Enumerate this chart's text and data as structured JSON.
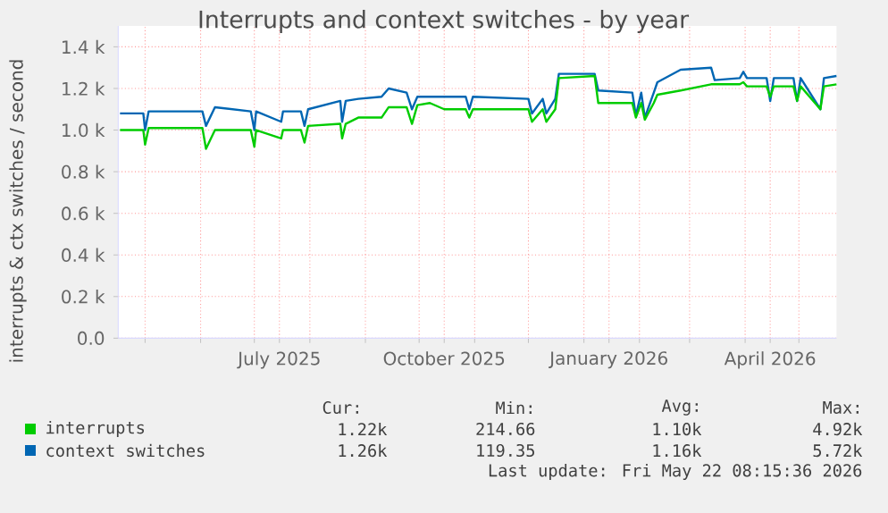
{
  "chart_data": {
    "type": "line",
    "title": "Interrupts and context switches - by year",
    "ylabel": "interrupts & ctx switches / second",
    "xlim": [
      "2025-04-16",
      "2026-05-22"
    ],
    "ylim": [
      0,
      1500
    ],
    "xticks": [
      {
        "value": "2025-05-01",
        "label": null
      },
      {
        "value": "2025-06-01",
        "label": null
      },
      {
        "value": "2025-07-01",
        "label": null
      },
      {
        "value": "2025-07-15",
        "label": "July 2025"
      },
      {
        "value": "2025-08-01",
        "label": null
      },
      {
        "value": "2025-09-01",
        "label": null
      },
      {
        "value": "2025-10-01",
        "label": null
      },
      {
        "value": "2025-10-15",
        "label": "October 2025"
      },
      {
        "value": "2025-11-01",
        "label": null
      },
      {
        "value": "2025-12-01",
        "label": null
      },
      {
        "value": "2026-01-01",
        "label": null
      },
      {
        "value": "2026-01-15",
        "label": "January 2026"
      },
      {
        "value": "2026-02-01",
        "label": null
      },
      {
        "value": "2026-03-01",
        "label": null
      },
      {
        "value": "2026-04-01",
        "label": null
      },
      {
        "value": "2026-04-15",
        "label": "April 2026"
      },
      {
        "value": "2026-05-01",
        "label": null
      }
    ],
    "yticks": [
      {
        "value": 0,
        "label": "0.0"
      },
      {
        "value": 200,
        "label": "0.2 k"
      },
      {
        "value": 400,
        "label": "0.4 k"
      },
      {
        "value": 600,
        "label": "0.6 k"
      },
      {
        "value": 800,
        "label": "0.8 k"
      },
      {
        "value": 1000,
        "label": "1.0 k"
      },
      {
        "value": 1200,
        "label": "1.2 k"
      },
      {
        "value": 1400,
        "label": "1.4 k"
      }
    ],
    "grid": true,
    "legend": "bottom",
    "annotations": [
      "Cur:",
      "Min:",
      "Avg:",
      "Max:",
      "1.22k",
      "214.66",
      "1.10k",
      "4.92k",
      "1.26k",
      "119.35",
      "1.16k",
      "5.72k",
      "Last update: Fri May 22 08:15:36 2026"
    ],
    "series": [
      {
        "name": "context switches",
        "color": "#0066b3",
        "x": [
          "2025-04-17",
          "2025-04-30",
          "2025-05-01",
          "2025-05-03",
          "2025-06-02",
          "2025-06-04",
          "2025-06-09",
          "2025-06-29",
          "2025-07-01",
          "2025-07-02",
          "2025-07-16",
          "2025-07-17",
          "2025-07-27",
          "2025-07-29",
          "2025-07-31",
          "2025-08-18",
          "2025-08-19",
          "2025-08-21",
          "2025-08-28",
          "2025-09-10",
          "2025-09-14",
          "2025-09-24",
          "2025-09-27",
          "2025-09-30",
          "2025-10-07",
          "2025-10-27",
          "2025-10-29",
          "2025-10-31",
          "2025-12-01",
          "2025-12-03",
          "2025-12-09",
          "2025-12-11",
          "2025-12-16",
          "2025-12-18",
          "2026-01-07",
          "2026-01-09",
          "2026-01-28",
          "2026-01-30",
          "2026-02-02",
          "2026-02-04",
          "2026-02-09",
          "2026-02-11",
          "2026-02-24",
          "2026-03-13",
          "2026-03-15",
          "2026-03-29",
          "2026-03-31",
          "2026-04-02",
          "2026-04-13",
          "2026-04-15",
          "2026-04-17",
          "2026-04-28",
          "2026-04-30",
          "2026-05-02",
          "2026-05-13",
          "2026-05-15",
          "2026-05-22"
        ],
        "values": [
          1080,
          1080,
          1000,
          1090,
          1090,
          1020,
          1110,
          1090,
          1000,
          1090,
          1040,
          1090,
          1090,
          1020,
          1100,
          1140,
          1040,
          1140,
          1150,
          1160,
          1200,
          1180,
          1100,
          1160,
          1160,
          1160,
          1100,
          1160,
          1150,
          1080,
          1150,
          1080,
          1150,
          1270,
          1270,
          1190,
          1180,
          1070,
          1180,
          1060,
          1180,
          1230,
          1290,
          1300,
          1240,
          1250,
          1280,
          1250,
          1250,
          1140,
          1250,
          1250,
          1140,
          1250,
          1100,
          1250,
          1260
        ]
      },
      {
        "name": "interrupts",
        "color": "#00cc00",
        "x": [
          "2025-04-17",
          "2025-04-30",
          "2025-05-01",
          "2025-05-03",
          "2025-06-02",
          "2025-06-04",
          "2025-06-09",
          "2025-06-29",
          "2025-07-01",
          "2025-07-02",
          "2025-07-16",
          "2025-07-17",
          "2025-07-27",
          "2025-07-29",
          "2025-07-31",
          "2025-08-18",
          "2025-08-19",
          "2025-08-21",
          "2025-08-28",
          "2025-09-10",
          "2025-09-14",
          "2025-09-24",
          "2025-09-27",
          "2025-09-30",
          "2025-10-07",
          "2025-10-15",
          "2025-10-27",
          "2025-10-29",
          "2025-10-31",
          "2025-12-01",
          "2025-12-03",
          "2025-12-09",
          "2025-12-11",
          "2025-12-16",
          "2025-12-18",
          "2026-01-07",
          "2026-01-09",
          "2026-01-28",
          "2026-01-30",
          "2026-02-02",
          "2026-02-04",
          "2026-02-09",
          "2026-02-11",
          "2026-02-24",
          "2026-03-13",
          "2026-03-29",
          "2026-03-31",
          "2026-04-02",
          "2026-04-13",
          "2026-04-15",
          "2026-04-17",
          "2026-04-28",
          "2026-04-30",
          "2026-05-02",
          "2026-05-13",
          "2026-05-15",
          "2026-05-22"
        ],
        "values": [
          1000,
          1000,
          930,
          1010,
          1010,
          910,
          1000,
          1000,
          920,
          1000,
          960,
          1000,
          1000,
          940,
          1020,
          1030,
          960,
          1030,
          1060,
          1060,
          1110,
          1110,
          1030,
          1120,
          1130,
          1100,
          1100,
          1060,
          1100,
          1100,
          1040,
          1100,
          1040,
          1100,
          1250,
          1260,
          1130,
          1130,
          1060,
          1130,
          1050,
          1130,
          1170,
          1190,
          1220,
          1220,
          1230,
          1210,
          1210,
          1160,
          1210,
          1210,
          1140,
          1210,
          1100,
          1210,
          1220
        ]
      }
    ]
  }
}
